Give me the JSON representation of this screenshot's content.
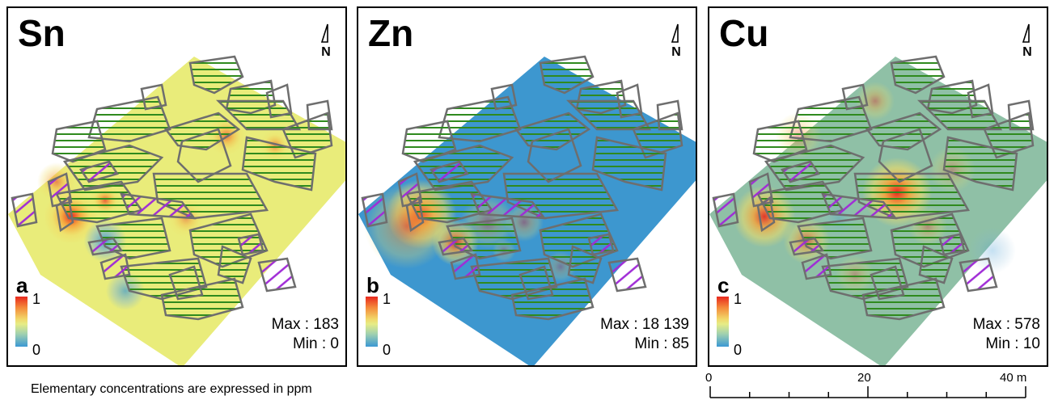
{
  "colors": {
    "sn_background": "#e9ec7a",
    "zn_background": "#3d97cf",
    "cu_background": "#8fc0a6",
    "hatch_green": "#2f8a1e",
    "hatch_purple": "#a02bd6",
    "outline_gray": "#6e6e6e",
    "hot": "#e8281e",
    "cold": "#3b98d4"
  },
  "panels": [
    {
      "element": "Sn",
      "letter": "a",
      "ramp_max": "1",
      "ramp_min": "0",
      "max_text": "Max : 183",
      "min_text": "Min : 0",
      "north_label": "N"
    },
    {
      "element": "Zn",
      "letter": "b",
      "ramp_max": "1",
      "ramp_min": "0",
      "max_text": "Max : 18 139",
      "min_text": "Min : 85",
      "north_label": "N"
    },
    {
      "element": "Cu",
      "letter": "c",
      "ramp_max": "1",
      "ramp_min": "0",
      "max_text": "Max : 578",
      "min_text": "Min : 10",
      "north_label": "N"
    }
  ],
  "footnote": "Elementary concentrations are expressed in ppm",
  "scale_bar": {
    "labels": [
      "0",
      "20",
      "40 m"
    ]
  }
}
